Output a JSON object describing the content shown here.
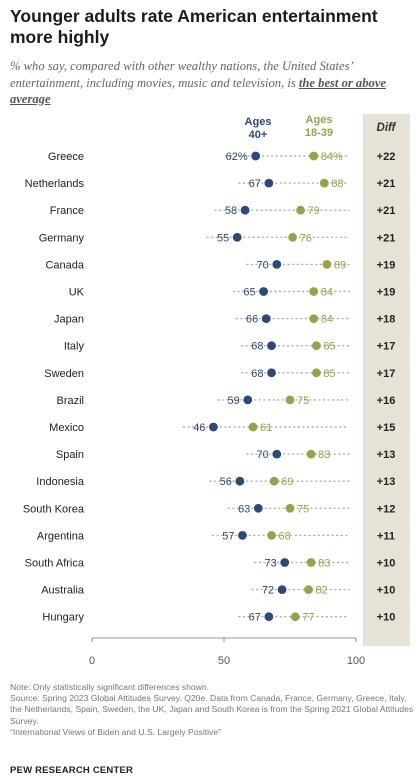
{
  "title": "Younger adults rate American entertainment more highly",
  "subtitle": {
    "prefix": "% who say, compared with other wealthy nations, the United States’ entertainment, including movies, music and television, is ",
    "emphasis": "the best or above average"
  },
  "colors": {
    "older": "#2b4a76",
    "younger": "#9aa14b",
    "diff_bg": "#e6e3d6",
    "dots": "#b0b0b0"
  },
  "chart_data": {
    "type": "scatter",
    "subtype": "dot-plot",
    "categories": [
      "Greece",
      "Netherlands",
      "France",
      "Germany",
      "Canada",
      "UK",
      "Japan",
      "Italy",
      "Sweden",
      "Brazil",
      "Mexico",
      "Spain",
      "Indonesia",
      "South Korea",
      "Argentina",
      "South Africa",
      "Australia",
      "Hungary"
    ],
    "series": [
      {
        "name": "Ages 40+",
        "values": [
          62,
          67,
          58,
          55,
          70,
          65,
          66,
          68,
          68,
          59,
          46,
          70,
          56,
          63,
          57,
          73,
          72,
          67
        ]
      },
      {
        "name": "Ages 18-39",
        "values": [
          84,
          88,
          79,
          76,
          89,
          84,
          84,
          85,
          85,
          75,
          61,
          83,
          69,
          75,
          68,
          83,
          82,
          77
        ]
      }
    ],
    "diff_header": "Diff",
    "diff": [
      "+22",
      "+21",
      "+21",
      "+21",
      "+19",
      "+19",
      "+18",
      "+17",
      "+17",
      "+16",
      "+15",
      "+13",
      "+13",
      "+12",
      "+11",
      "+10",
      "+10",
      "+10"
    ],
    "first_row_suffix": "%",
    "xlim": [
      0,
      100
    ],
    "xticks": [
      "0",
      "50",
      "100"
    ],
    "grid": false
  },
  "notes": {
    "note": "Note: Only statistically significant differences shown.",
    "source": "Source: Spring 2023 Global Attitudes Survey. Q20e. Data from Canada, France, Germany, Greece, Italy, the Netherlands, Spain, Sweden, the UK, Japan and South Korea is from the Spring 2021 Global Attitudes Survey.",
    "report": "“International Views of Biden and U.S. Largely Positive”"
  },
  "brand": "PEW RESEARCH CENTER"
}
